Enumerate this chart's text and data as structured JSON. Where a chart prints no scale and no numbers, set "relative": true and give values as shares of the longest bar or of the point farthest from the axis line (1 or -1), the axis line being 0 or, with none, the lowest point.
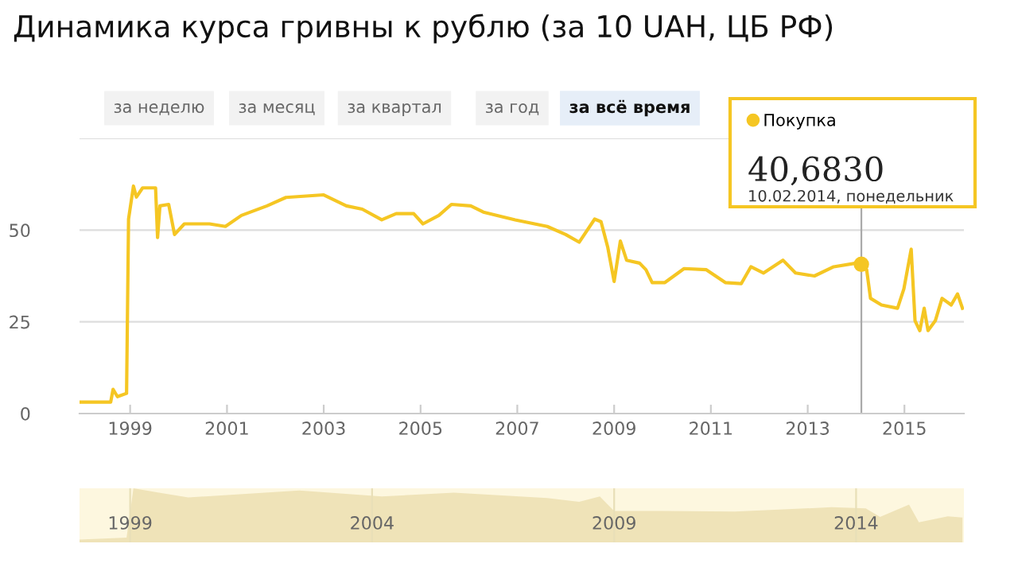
{
  "chart_data": [
    {
      "type": "line",
      "title": "Динамика курса гривны к рублю (за 10 UAH, ЦБ РФ)",
      "series": [
        {
          "name": "Покупка",
          "color": "#f5c623",
          "x": [
            "1997-12-15",
            "1998-08-07",
            "1998-08-25",
            "1998-09-27",
            "1998-12-05",
            "1998-12-20",
            "1999-01-26",
            "1999-02-17",
            "1999-04-05",
            "1999-07-12",
            "1999-07-27",
            "1999-08-14",
            "1999-10-19",
            "1999-12-02",
            "2000-02-14",
            "2000-08-22",
            "2000-12-20",
            "2001-04-20",
            "2001-10-30",
            "2002-03-22",
            "2003-01-01",
            "2003-06-21",
            "2003-10-19",
            "2004-03-14",
            "2004-07-01",
            "2004-11-10",
            "2005-01-19",
            "2005-05-19",
            "2005-08-22",
            "2006-01-15",
            "2006-04-20",
            "2006-12-16",
            "2007-08-15",
            "2008-01-01",
            "2008-04-12",
            "2008-08-07",
            "2008-09-24",
            "2008-11-14",
            "2009-01-01",
            "2009-02-17",
            "2009-04-05",
            "2009-07-12",
            "2009-08-29",
            "2009-10-15",
            "2010-01-19",
            "2010-06-13",
            "2010-11-28",
            "2011-04-20",
            "2011-08-18",
            "2011-10-30",
            "2012-02-03",
            "2012-06-28",
            "2012-10-01",
            "2013-02-21",
            "2013-07-16",
            "2014-01-01",
            "2014-02-10",
            "2014-03-22",
            "2014-04-20",
            "2014-07-12",
            "2014-11-10",
            "2014-12-28",
            "2015-02-21",
            "2015-03-22",
            "2015-04-27",
            "2015-05-30",
            "2015-06-28",
            "2015-08-22",
            "2015-10-12",
            "2015-12-20",
            "2016-02-06",
            "2016-03-14"
          ],
          "values": [
            3.1,
            3.1,
            6.6,
            4.6,
            5.5,
            53,
            62,
            59,
            61.5,
            61.5,
            48,
            56.6,
            57,
            48.8,
            51.7,
            51.7,
            51,
            54,
            56.6,
            58.9,
            59.6,
            56.6,
            55.7,
            52.8,
            54.5,
            54.5,
            51.7,
            54,
            57,
            56.6,
            54.9,
            52.8,
            51,
            48.8,
            46.7,
            53,
            52.3,
            45.3,
            36,
            47,
            41.8,
            41,
            39.2,
            35.7,
            35.7,
            39.5,
            39.2,
            35.7,
            35.4,
            40,
            38.3,
            41.8,
            38.3,
            37.5,
            40,
            41,
            40.683,
            39.2,
            31.4,
            29.6,
            28.7,
            34,
            44.8,
            25.3,
            22.6,
            28.7,
            22.6,
            25.3,
            31.4,
            29.6,
            32.6,
            28.7
          ]
        }
      ],
      "xlim": [
        "1997-12-15",
        "2016-03-25"
      ],
      "xticks": [
        {
          "value": "1999-01-01",
          "label": "1999"
        },
        {
          "value": "2001-01-01",
          "label": "2001"
        },
        {
          "value": "2003-01-01",
          "label": "2003"
        },
        {
          "value": "2005-01-01",
          "label": "2005"
        },
        {
          "value": "2007-01-01",
          "label": "2007"
        },
        {
          "value": "2009-01-01",
          "label": "2009"
        },
        {
          "value": "2011-01-01",
          "label": "2011"
        },
        {
          "value": "2013-01-01",
          "label": "2013"
        },
        {
          "value": "2015-01-01",
          "label": "2015"
        }
      ],
      "ylim": [
        0,
        75
      ],
      "yticks": [
        0,
        25,
        50,
        {
          "value": 75,
          "label": null
        }
      ],
      "grid": "y",
      "legend": "top right",
      "ref_lines": [
        {
          "axis": "x",
          "value": "2014-02-10",
          "color": "#aaaaaa"
        }
      ],
      "annotations": [
        "за неделю",
        "за месяц",
        "за квартал",
        "за год",
        "за всё время",
        {
          "text": "40,6830",
          "x": "2014-02-10",
          "y": 40.683
        },
        "10.02.2014, понедельник"
      ]
    },
    {
      "type": "area",
      "relative": true,
      "color": "#efe3b8",
      "x": [
        "1997-12-15",
        "1998-12-05",
        "1999-01-26",
        "1999-08-07",
        "2000-03-15",
        "2002-07-01",
        "2004-03-14",
        "2005-09-10",
        "2007-08-15",
        "2008-04-12",
        "2008-09-15",
        "2009-01-01",
        "2010-01-01",
        "2011-07-01",
        "2013-07-01",
        "2014-03-15",
        "2014-07-01",
        "2015-02-05",
        "2015-04-20",
        "2015-11-25",
        "2016-03-14"
      ],
      "values": [
        0.05,
        0.09,
        1.0,
        0.92,
        0.83,
        0.96,
        0.85,
        0.92,
        0.82,
        0.75,
        0.85,
        0.58,
        0.58,
        0.57,
        0.65,
        0.63,
        0.47,
        0.7,
        0.37,
        0.48,
        0.46
      ],
      "xlim": [
        "1997-12-15",
        "2016-03-25"
      ],
      "xticks": [
        {
          "value": "1999-01-01",
          "label": "1999"
        },
        {
          "value": "2004-01-01",
          "label": "2004"
        },
        {
          "value": "2009-01-01",
          "label": "2009"
        },
        {
          "value": "2014-01-01",
          "label": "2014"
        }
      ],
      "grid": "x"
    }
  ]
}
